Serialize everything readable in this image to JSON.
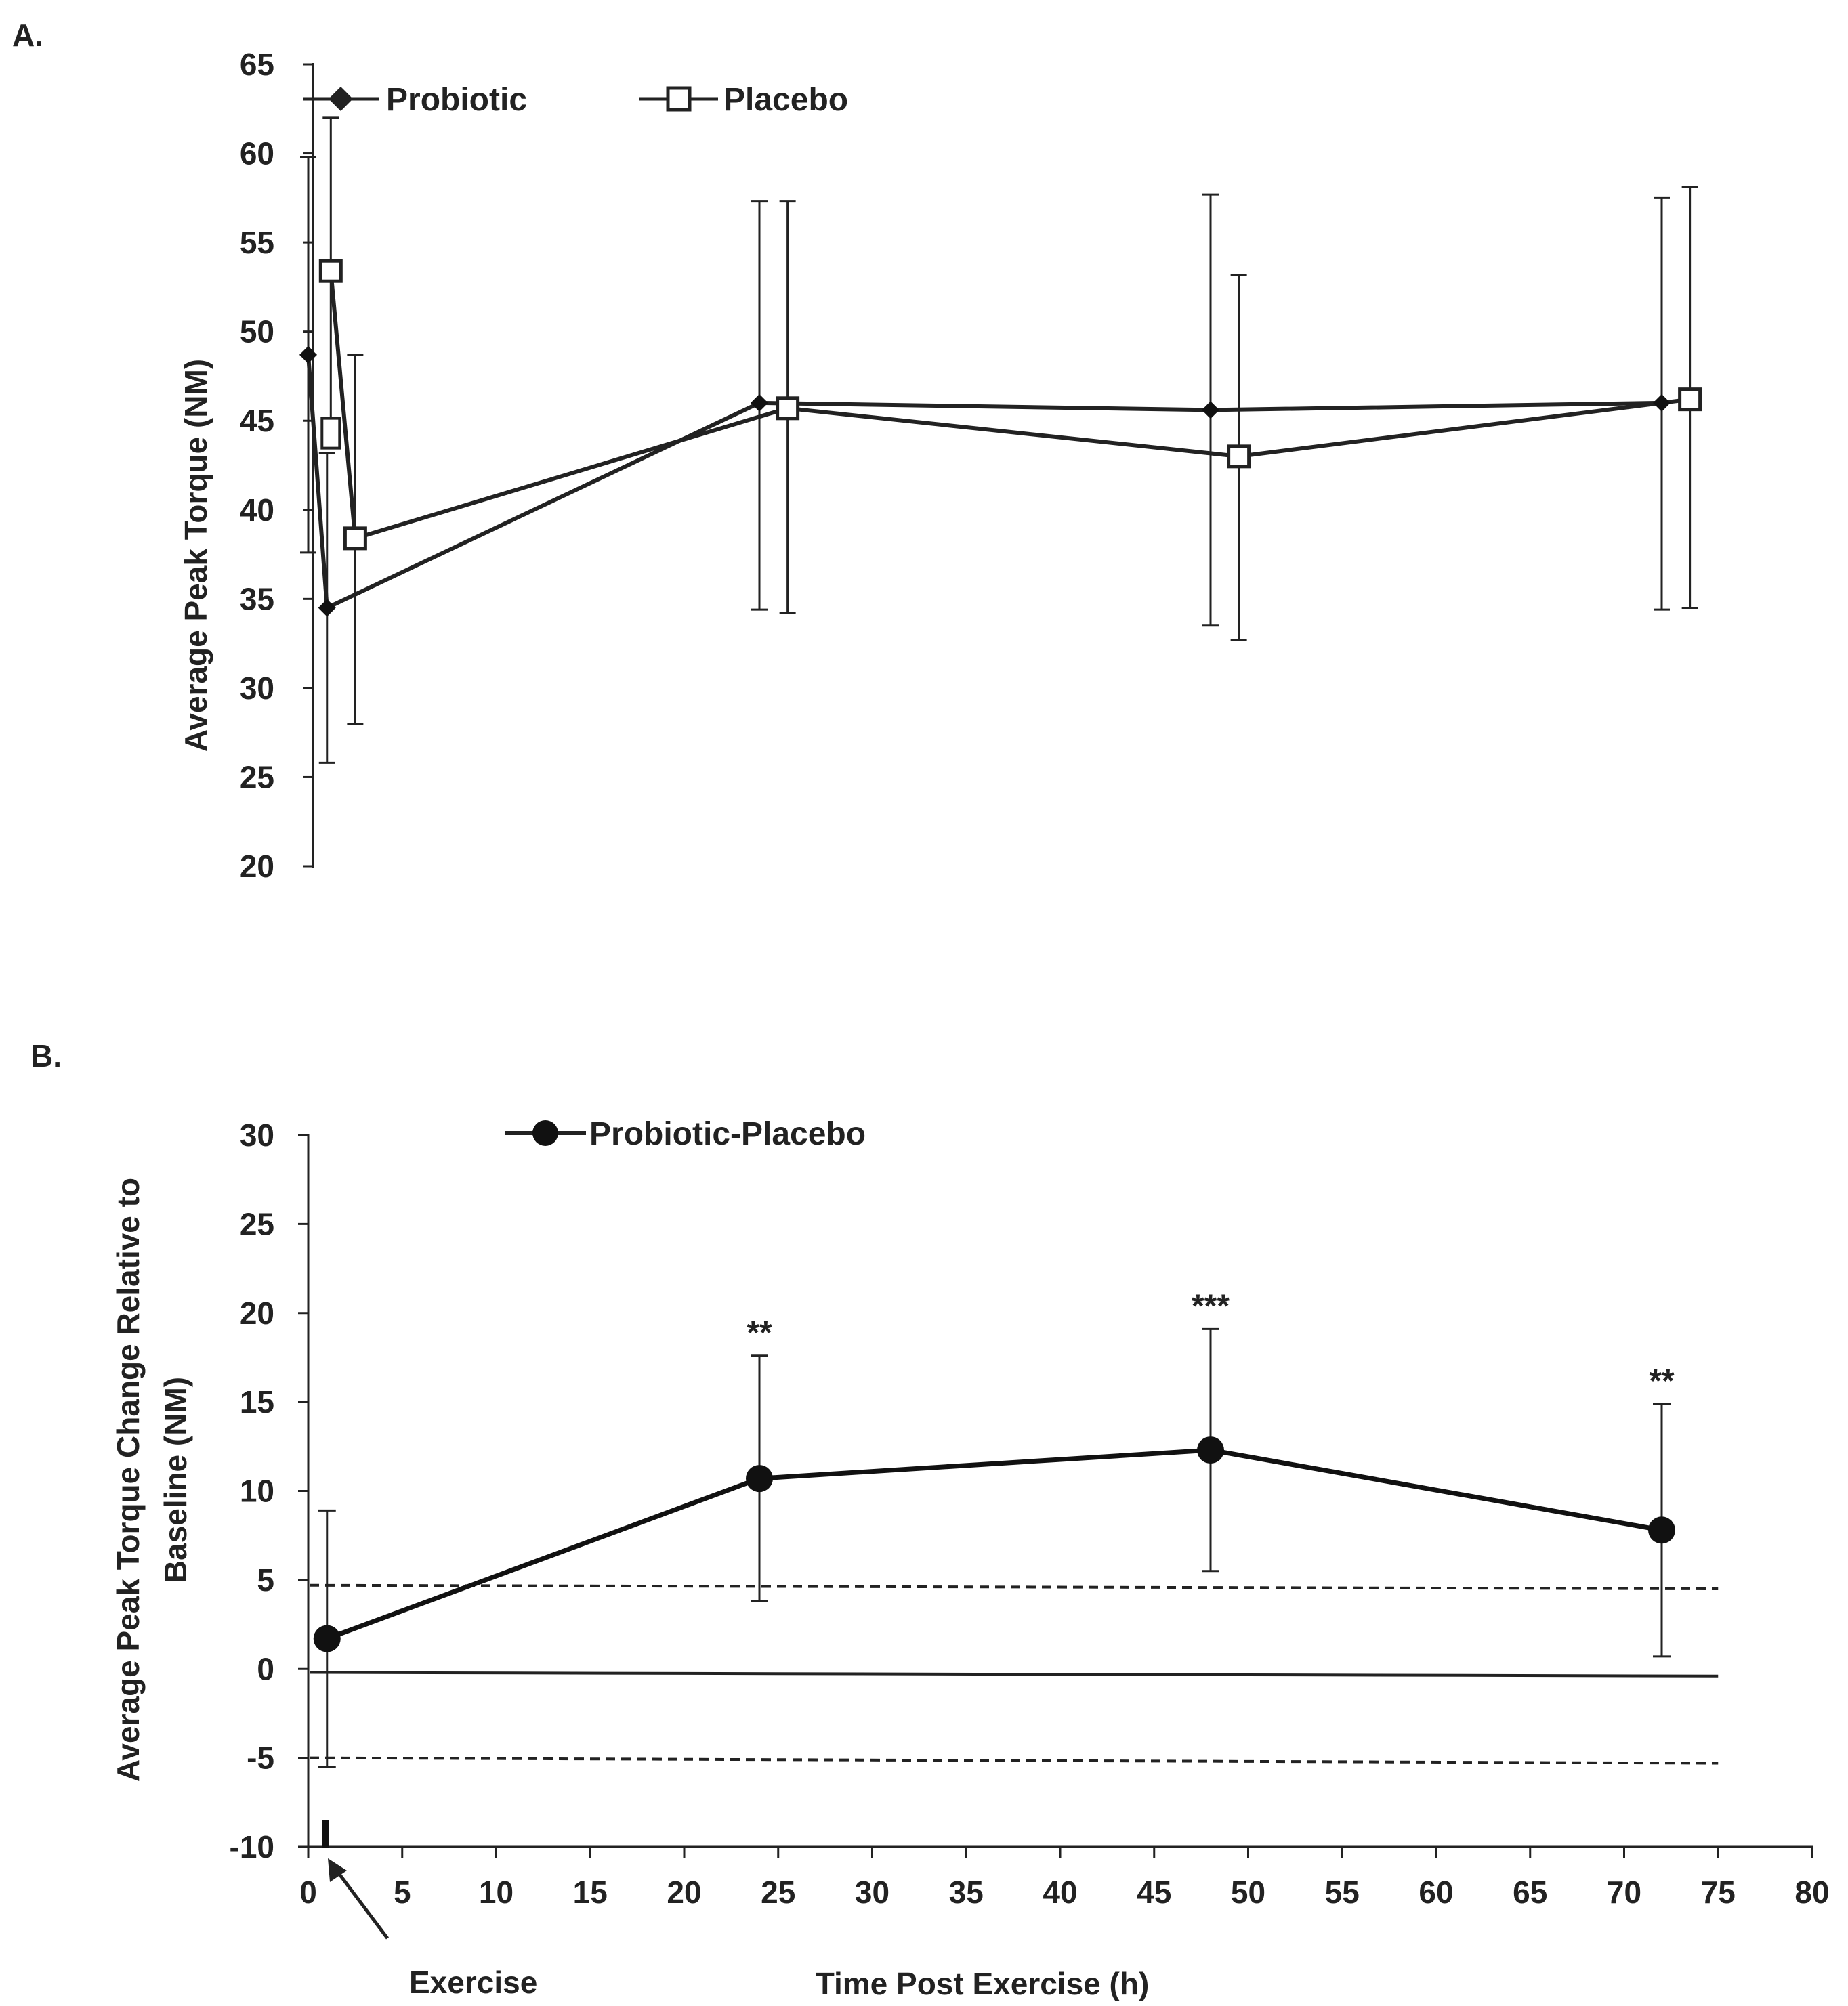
{
  "chart_data": [
    {
      "panel_label": "A.",
      "type": "line",
      "ylabel": "Average Peak Torque (NM)",
      "ylim": [
        20,
        65
      ],
      "yticks": [
        20,
        25,
        30,
        35,
        40,
        45,
        50,
        55,
        60,
        65
      ],
      "legend_position": "top",
      "series": [
        {
          "name": "Probiotic",
          "marker": "diamond-filled",
          "x": [
            0,
            1,
            24,
            48,
            72
          ],
          "y": [
            48.7,
            34.5,
            46.0,
            45.6,
            46.0
          ],
          "err_lower": [
            11.1,
            8.7,
            11.6,
            12.1,
            11.6
          ],
          "err_upper": [
            11.1,
            8.7,
            11.3,
            12.1,
            11.5
          ]
        },
        {
          "name": "Placebo",
          "marker": "square-open",
          "x": [
            1.2,
            2.5,
            25.5,
            49.5,
            73.5
          ],
          "y": [
            53.4,
            38.4,
            45.7,
            43.0,
            46.2
          ],
          "err_lower": [
            9.0,
            10.4,
            11.5,
            10.3,
            11.7
          ],
          "err_upper": [
            8.6,
            10.3,
            11.6,
            10.2,
            11.9
          ]
        }
      ],
      "extra_marker": {
        "x": 1.2,
        "y": 44.3
      }
    },
    {
      "panel_label": "B.",
      "type": "line",
      "xlabel": "Time Post Exercise (h)",
      "ylabel_lines": [
        "Average Peak Torque Change Relative to",
        "Baseline (NM)"
      ],
      "xlim": [
        0,
        80
      ],
      "ylim": [
        -10,
        30
      ],
      "xticks": [
        0,
        5,
        10,
        15,
        20,
        25,
        30,
        35,
        40,
        45,
        50,
        55,
        60,
        65,
        70,
        75,
        80
      ],
      "yticks": [
        -10,
        -5,
        0,
        5,
        10,
        15,
        20,
        25,
        30
      ],
      "legend_position": "top-left",
      "series": [
        {
          "name": "Probiotic-Placebo",
          "marker": "circle-filled",
          "x": [
            1,
            24,
            48,
            72
          ],
          "y": [
            1.7,
            10.7,
            12.3,
            7.8
          ],
          "err": [
            7.2,
            6.9,
            6.8,
            7.1
          ],
          "significance": [
            "",
            "**",
            "***",
            "**"
          ]
        }
      ],
      "reference_lines": [
        {
          "style": "dashed",
          "y_start": 4.7,
          "y_end": 4.5
        },
        {
          "style": "solid",
          "y_start": -0.2,
          "y_end": -0.4
        },
        {
          "style": "dashed",
          "y_start": -5.0,
          "y_end": -5.3
        }
      ],
      "annotation": {
        "text": "Exercise",
        "x": 1
      }
    }
  ]
}
